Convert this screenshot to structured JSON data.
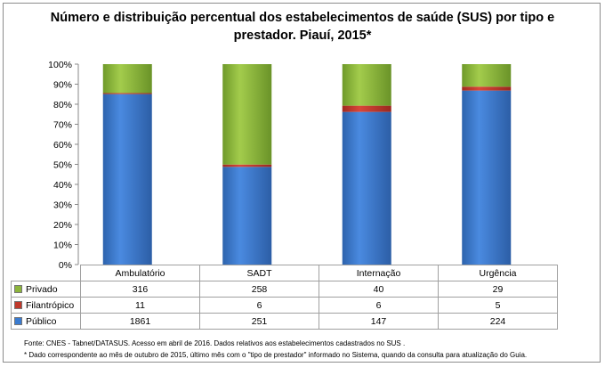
{
  "chart_data": {
    "type": "bar",
    "stacked": "percent",
    "title": "Número e distribuição percentual dos estabelecimentos de saúde (SUS) por tipo e prestador. Piauí, 2015*",
    "categories": [
      "Ambulatório",
      "SADT",
      "Internação",
      "Urgência"
    ],
    "series": [
      {
        "name": "Privado",
        "values": [
          316,
          258,
          40,
          29
        ],
        "color": "#8db53c"
      },
      {
        "name": "Filantrópico",
        "values": [
          11,
          6,
          6,
          5
        ],
        "color": "#c0392b"
      },
      {
        "name": "Público",
        "values": [
          1861,
          251,
          147,
          224
        ],
        "color": "#3a7bd0"
      }
    ],
    "yticks": [
      "0%",
      "10%",
      "20%",
      "30%",
      "40%",
      "50%",
      "60%",
      "70%",
      "80%",
      "90%",
      "100%"
    ],
    "ylim": [
      0,
      100
    ],
    "grid": false,
    "legend": "data-table"
  },
  "footer": {
    "source": "Fonte: CNES - Tabnet/DATASUS. Acesso em abril de 2016.  Dados relativos aos estabelecimentos cadastrados no SUS .",
    "note": "* Dado correspondente ao mês de  outubro de 2015, último mês com o \"tipo de prestador\" informado no Sistema, quando da consulta para atualização do Guia."
  }
}
